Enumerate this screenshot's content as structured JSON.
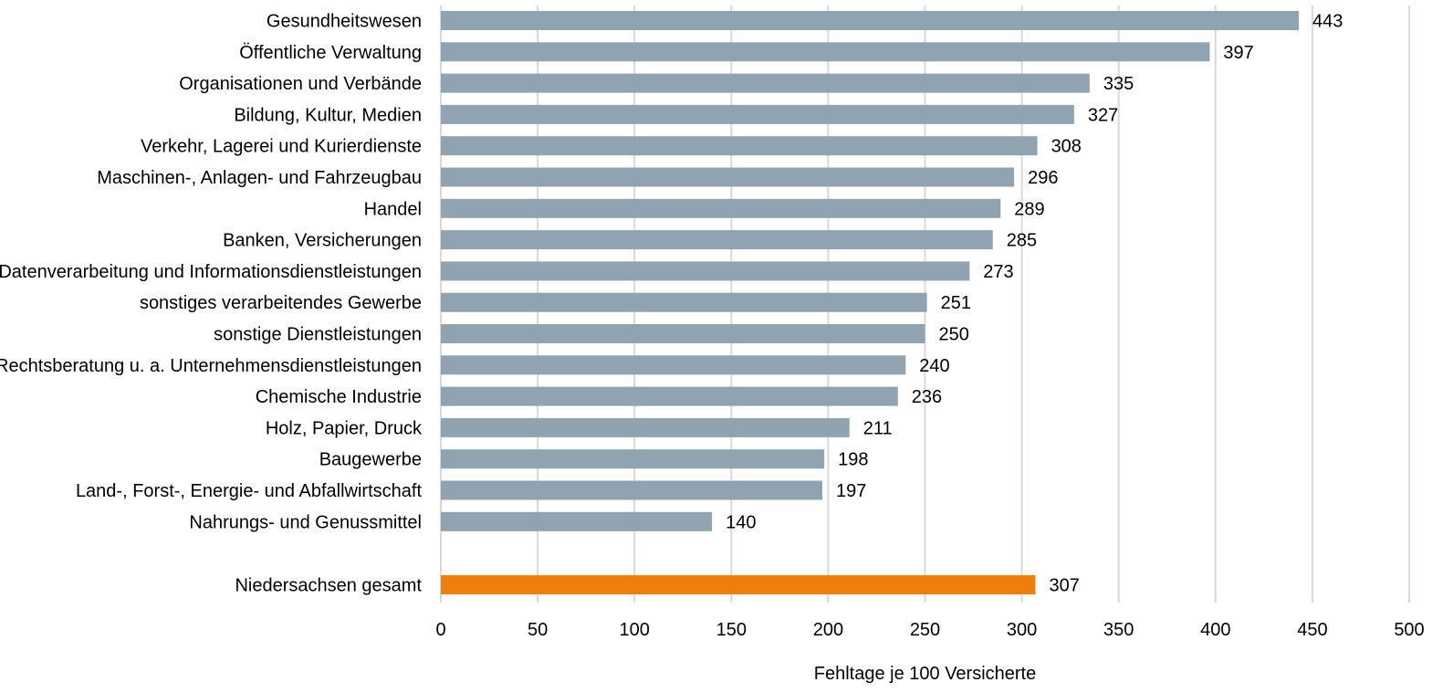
{
  "chart_data": {
    "type": "bar",
    "orientation": "horizontal",
    "categories": [
      "Gesundheitswesen",
      "Öffentliche Verwaltung",
      "Organisationen und Verbände",
      "Bildung, Kultur, Medien",
      "Verkehr, Lagerei und Kurierdienste",
      "Maschinen-, Anlagen- und Fahrzeugbau",
      "Handel",
      "Banken, Versicherungen",
      "Datenverarbeitung und Informationsdienstleistungen",
      "sonstiges verarbeitendes Gewerbe",
      "sonstige Dienstleistungen",
      "Rechtsberatung u. a. Unternehmensdienstleistungen",
      "Chemische Industrie",
      "Holz, Papier, Druck",
      "Baugewerbe",
      "Land-, Forst-,  Energie- und Abfallwirtschaft",
      "Nahrungs- und Genussmittel"
    ],
    "values": [
      443,
      397,
      335,
      327,
      308,
      296,
      289,
      285,
      273,
      251,
      250,
      240,
      236,
      211,
      198,
      197,
      140
    ],
    "total": {
      "label": "Niedersachsen gesamt",
      "value": 307
    },
    "xlabel": "Fehltage je 100 Versicherte",
    "ylabel": "",
    "title": "",
    "xlim": [
      0,
      500
    ],
    "xticks": [
      0,
      50,
      100,
      150,
      200,
      250,
      300,
      350,
      400,
      450,
      500
    ],
    "grid": "vertical",
    "legend": "none",
    "colors": {
      "bar": "#8fa4b0",
      "total_bar": "#f07f09",
      "grid": "#d9d9d9",
      "text": "#000000"
    }
  }
}
